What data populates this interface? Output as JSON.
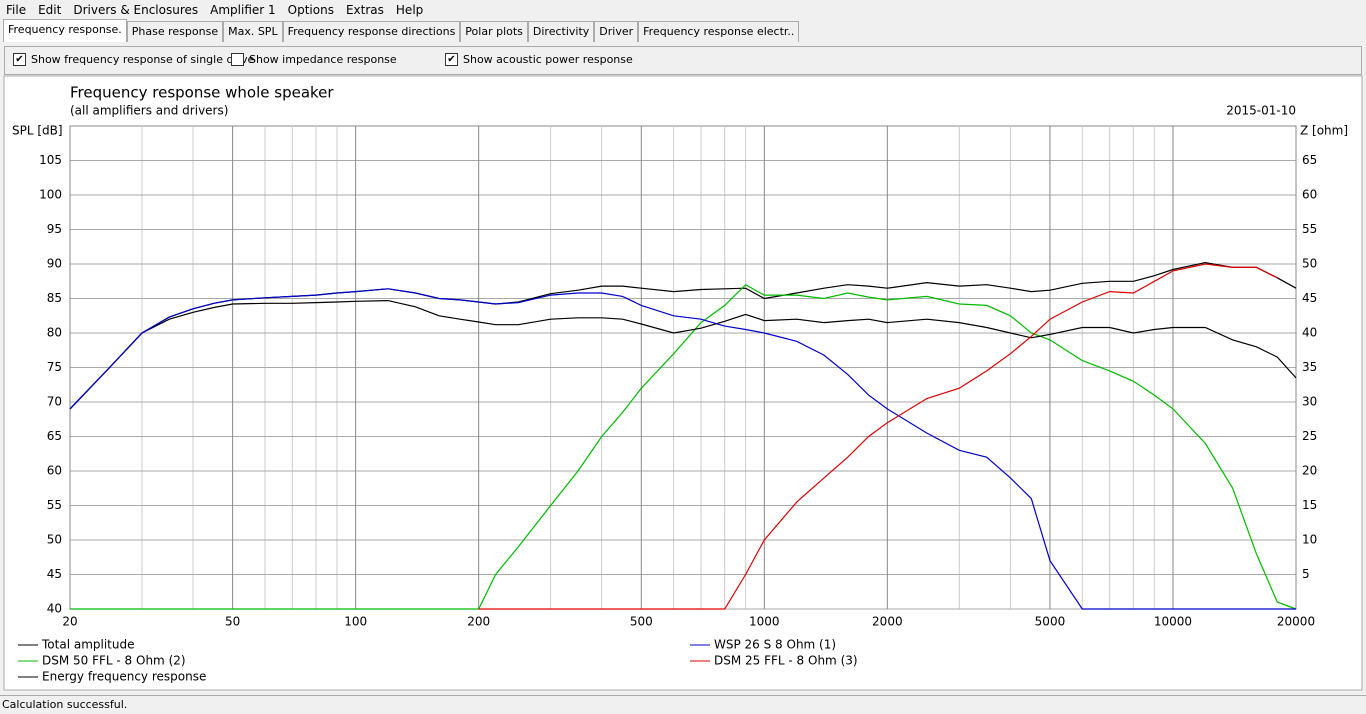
{
  "menu": [
    "File",
    "Edit",
    "Drivers & Enclosures",
    "Amplifier 1",
    "Options",
    "Extras",
    "Help"
  ],
  "tabs": [
    "Frequency response.",
    "Phase response",
    "Max. SPL",
    "Frequency response directions",
    "Polar plots",
    "Directivity",
    "Driver",
    "Frequency response electr.."
  ],
  "active_tab": 0,
  "checkboxes": [
    {
      "label": "Show frequency response of single drive",
      "checked": true
    },
    {
      "label": "Show impedance response",
      "checked": false
    },
    {
      "label": "Show acoustic power response",
      "checked": true
    }
  ],
  "status": "Calculation successful.",
  "chart_data": {
    "type": "line",
    "title": "Frequency response whole speaker",
    "subtitle": "(all amplifiers and drivers)",
    "date": "2015-01-10",
    "ylabel": "SPL [dB]",
    "y2label": "Z [ohm]",
    "xlog": true,
    "grid": true,
    "xlim": [
      20,
      20000
    ],
    "xticks": [
      20,
      50,
      100,
      200,
      500,
      1000,
      2000,
      5000,
      10000,
      20000
    ],
    "xminorticks": [
      30,
      40,
      60,
      70,
      80,
      90,
      300,
      400,
      600,
      700,
      800,
      900,
      3000,
      4000,
      6000,
      7000,
      8000,
      9000
    ],
    "ylim": [
      40,
      110
    ],
    "yticks": [
      40,
      45,
      50,
      55,
      60,
      65,
      70,
      75,
      80,
      85,
      90,
      95,
      100,
      105
    ],
    "y2lim": [
      0,
      70
    ],
    "y2ticks": [
      5,
      10,
      15,
      20,
      25,
      30,
      35,
      40,
      45,
      50,
      55,
      60,
      65
    ],
    "x": [
      20,
      25,
      30,
      35,
      40,
      45,
      50,
      60,
      70,
      80,
      90,
      100,
      120,
      140,
      160,
      180,
      200,
      220,
      250,
      300,
      350,
      400,
      450,
      500,
      600,
      700,
      800,
      900,
      1000,
      1200,
      1400,
      1600,
      1800,
      2000,
      2500,
      3000,
      3500,
      4000,
      4500,
      5000,
      6000,
      7000,
      8000,
      9000,
      10000,
      12000,
      14000,
      16000,
      18000,
      20000
    ],
    "series": [
      {
        "name": "Total amplitude",
        "color": "#000000",
        "values": [
          69,
          75,
          80,
          82.3,
          83.5,
          84.3,
          84.8,
          85.1,
          85.3,
          85.5,
          85.8,
          86,
          86.4,
          85.8,
          85,
          84.8,
          84.5,
          84.2,
          84.5,
          85.7,
          86.2,
          86.8,
          86.8,
          86.5,
          86,
          86.3,
          86.4,
          86.5,
          85,
          85.8,
          86.5,
          87,
          86.8,
          86.5,
          87.3,
          86.8,
          87,
          86.5,
          86,
          86.2,
          87.2,
          87.5,
          87.5,
          88.3,
          89.2,
          90.2,
          89.5,
          89.5,
          88,
          86.5
        ]
      },
      {
        "name": "DSM 50 FFL - 8 Ohm (2)",
        "color": "#00bb00",
        "values": [
          40,
          40,
          40,
          40,
          40,
          40,
          40,
          40,
          40,
          40,
          40,
          40,
          40,
          40,
          40,
          40,
          40,
          45,
          49,
          55,
          60,
          65,
          68.5,
          72,
          77,
          81.5,
          84,
          87,
          85.5,
          85.5,
          85,
          85.8,
          85.2,
          84.8,
          85.3,
          84.2,
          84,
          82.5,
          80,
          79,
          76,
          74.5,
          73,
          71,
          69,
          64,
          57.5,
          48,
          41,
          40
        ]
      },
      {
        "name": "Energy frequency response",
        "color": "#000000",
        "values": [
          69,
          75,
          80,
          82,
          83,
          83.7,
          84.2,
          84.3,
          84.3,
          84.4,
          84.5,
          84.6,
          84.7,
          83.8,
          82.5,
          82,
          81.6,
          81.2,
          81.2,
          82,
          82.2,
          82.2,
          82,
          81.3,
          80,
          80.7,
          81.7,
          82.7,
          81.8,
          82,
          81.5,
          81.8,
          82,
          81.5,
          82,
          81.5,
          80.8,
          80,
          79.3,
          79.8,
          80.8,
          80.8,
          80,
          80.5,
          80.8,
          80.8,
          79,
          78,
          76.5,
          73.5
        ]
      },
      {
        "name": "WSP 26 S 8 Ohm (1)",
        "color": "#0000cc",
        "values": [
          69,
          75,
          80,
          82.3,
          83.5,
          84.3,
          84.8,
          85.1,
          85.3,
          85.5,
          85.8,
          86,
          86.4,
          85.8,
          85,
          84.8,
          84.5,
          84.2,
          84.4,
          85.5,
          85.8,
          85.8,
          85.3,
          84,
          82.5,
          82,
          81,
          80.5,
          80,
          78.8,
          76.8,
          74,
          71,
          69,
          65.5,
          63,
          62,
          59,
          56,
          47,
          40,
          40,
          40,
          40,
          40,
          40,
          40,
          40,
          40,
          40
        ]
      },
      {
        "name": "DSM 25 FFL - 8 Ohm (3)",
        "color": "#dd0000",
        "values": [
          null,
          null,
          null,
          null,
          null,
          null,
          null,
          null,
          null,
          null,
          null,
          null,
          null,
          null,
          null,
          null,
          40,
          40,
          40,
          40,
          40,
          40,
          40,
          40,
          40,
          40,
          40,
          45,
          50,
          55.5,
          59,
          62,
          65,
          67,
          70.5,
          72,
          74.5,
          77,
          79.5,
          82,
          84.5,
          86,
          85.8,
          87.5,
          89,
          90,
          89.5,
          89.5,
          88,
          null
        ]
      }
    ]
  }
}
